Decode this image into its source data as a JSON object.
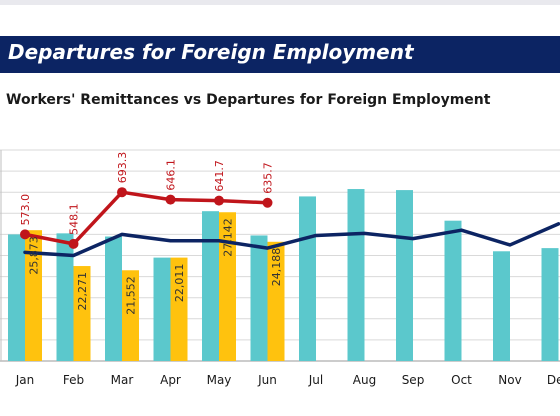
{
  "banner": {
    "title": "Departures for Foreign Employment"
  },
  "chart_data": {
    "type": "bar",
    "title": "Workers' Remittances vs Departures for Foreign Employment",
    "categories": [
      "Jan",
      "Feb",
      "Mar",
      "Apr",
      "May",
      "Jun",
      "Jul",
      "Aug",
      "Sep",
      "Oct",
      "Nov",
      "Dec"
    ],
    "ylim": [
      0,
      1000
    ],
    "grid": true,
    "series": [
      {
        "kind": "bar",
        "values": [
          600,
          605,
          590,
          490,
          710,
          595,
          780,
          815,
          810,
          665,
          520,
          535
        ],
        "color": "#5bc8cc"
      },
      {
        "kind": "bar",
        "values": [
          620,
          450,
          430,
          490,
          705,
          565,
          null,
          null,
          null,
          null,
          null,
          null
        ],
        "color": "#ffc20e",
        "labels": [
          "25,873",
          "22,271",
          "21,552",
          "22,011",
          "27,142",
          "24,188",
          null,
          null,
          null,
          null,
          null,
          null
        ]
      },
      {
        "kind": "line",
        "values": [
          600,
          555,
          800,
          765,
          760,
          750,
          null,
          null,
          null,
          null,
          null,
          null
        ],
        "color": "#c0151b",
        "labels": [
          "573.0",
          "548.1",
          "693.3",
          "646.1",
          "641.7",
          "635.7",
          null,
          null,
          null,
          null,
          null,
          null
        ]
      },
      {
        "kind": "line",
        "values": [
          515,
          500,
          600,
          570,
          570,
          535,
          595,
          605,
          580,
          620,
          550,
          650
        ],
        "color": "#0c2463"
      }
    ]
  }
}
